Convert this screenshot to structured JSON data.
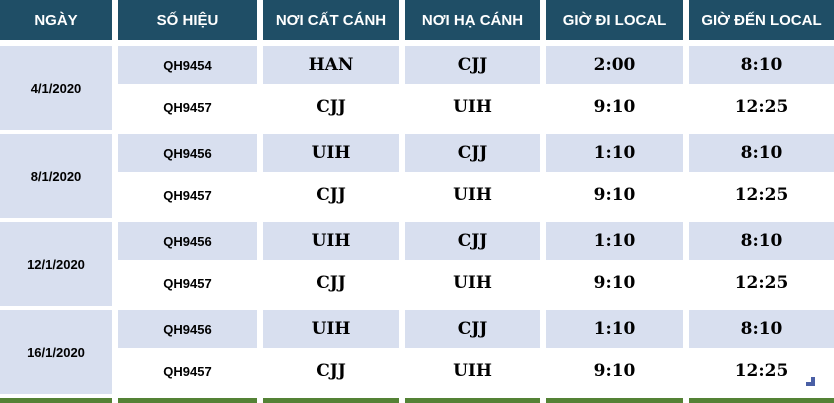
{
  "table": {
    "columns": [
      "NGÀY",
      "SỐ HIỆU",
      "NƠI CẤT CÁNH",
      "NƠI HẠ CÁNH",
      "GIỜ ĐI LOCAL",
      "GIỜ ĐẾN LOCAL"
    ],
    "groups": [
      {
        "date": "4/1/2020",
        "flights": [
          {
            "so_hieu": "QH9454",
            "from": "HAN",
            "to": "CJJ",
            "dep": "2:00",
            "arr": "8:10"
          },
          {
            "so_hieu": "QH9457",
            "from": "CJJ",
            "to": "UIH",
            "dep": "9:10",
            "arr": "12:25"
          }
        ]
      },
      {
        "date": "8/1/2020",
        "flights": [
          {
            "so_hieu": "QH9456",
            "from": "UIH",
            "to": "CJJ",
            "dep": "1:10",
            "arr": "8:10"
          },
          {
            "so_hieu": "QH9457",
            "from": "CJJ",
            "to": "UIH",
            "dep": "9:10",
            "arr": "12:25"
          }
        ]
      },
      {
        "date": "12/1/2020",
        "flights": [
          {
            "so_hieu": "QH9456",
            "from": "UIH",
            "to": "CJJ",
            "dep": "1:10",
            "arr": "8:10"
          },
          {
            "so_hieu": "QH9457",
            "from": "CJJ",
            "to": "UIH",
            "dep": "9:10",
            "arr": "12:25"
          }
        ]
      },
      {
        "date": "16/1/2020",
        "flights": [
          {
            "so_hieu": "QH9456",
            "from": "UIH",
            "to": "CJJ",
            "dep": "1:10",
            "arr": "8:10"
          },
          {
            "so_hieu": "QH9457",
            "from": "CJJ",
            "to": "UIH",
            "dep": "9:10",
            "arr": "12:25"
          }
        ]
      }
    ]
  },
  "colors": {
    "header_bg": "#1F4E66",
    "row_alt_bg": "#D8DFEF",
    "bottom_bar_green": "#548235",
    "corner_marker_blue": "#4A5FA5"
  }
}
